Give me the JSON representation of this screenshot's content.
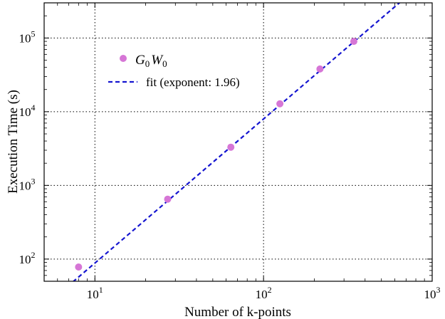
{
  "chart_data": {
    "type": "scatter",
    "xscale": "log",
    "yscale": "log",
    "xlim": [
      5,
      1000
    ],
    "ylim": [
      50,
      300000
    ],
    "xlabel": "Number of k-points",
    "ylabel": "Execution Time (s)",
    "x_ticks": [
      {
        "value": 10,
        "base": "10",
        "exp": "1"
      },
      {
        "value": 100,
        "base": "10",
        "exp": "2"
      },
      {
        "value": 1000,
        "base": "10",
        "exp": "3"
      }
    ],
    "y_ticks": [
      {
        "value": 100,
        "base": "10",
        "exp": "2"
      },
      {
        "value": 1000,
        "base": "10",
        "exp": "3"
      },
      {
        "value": 10000,
        "base": "10",
        "exp": "4"
      },
      {
        "value": 100000,
        "base": "10",
        "exp": "5"
      }
    ],
    "grid": true,
    "legend_position": "upper-left",
    "series": [
      {
        "name_main1": "G",
        "name_sub1": "0",
        "name_main2": "W",
        "name_sub2": "0",
        "type": "scatter",
        "color": "#d676d6",
        "x": [
          8,
          27,
          64,
          125,
          216,
          343
        ],
        "y": [
          78,
          650,
          3300,
          12800,
          38000,
          90000
        ]
      },
      {
        "name": "fit (exponent: 1.96)",
        "type": "line",
        "style": "dashed",
        "color": "#1515d0",
        "exponent": 1.96,
        "x": [
          7.4,
          650
        ],
        "y": [
          49,
          310000
        ]
      }
    ]
  }
}
